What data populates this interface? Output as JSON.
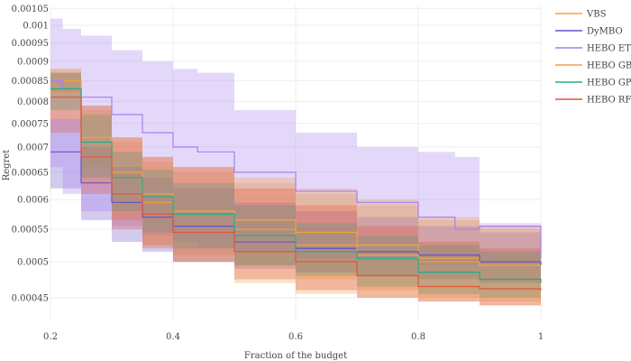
{
  "chart_data": {
    "type": "line",
    "xlabel": "Fraction of the budget",
    "ylabel": "Regret",
    "xlim": [
      0.2,
      1.0
    ],
    "ylim": [
      0.00042,
      0.00106
    ],
    "y_scale": "log",
    "grid": true,
    "legend_position": "right",
    "x_ticks": [
      {
        "value": 0.2,
        "label": "0.2"
      },
      {
        "value": 0.4,
        "label": "0.4"
      },
      {
        "value": 0.6,
        "label": "0.6"
      },
      {
        "value": 0.8,
        "label": "0.8"
      },
      {
        "value": 1.0,
        "label": "1"
      }
    ],
    "y_ticks": [
      {
        "value": 0.00045,
        "label": "0.00045"
      },
      {
        "value": 0.0005,
        "label": "0.0005"
      },
      {
        "value": 0.00055,
        "label": "0.00055"
      },
      {
        "value": 0.0006,
        "label": "0.0006"
      },
      {
        "value": 0.00065,
        "label": "0.00065"
      },
      {
        "value": 0.0007,
        "label": "0.0007"
      },
      {
        "value": 0.00075,
        "label": "0.00075"
      },
      {
        "value": 0.0008,
        "label": "0.0008"
      },
      {
        "value": 0.00085,
        "label": "0.00085"
      },
      {
        "value": 0.0009,
        "label": "0.0009"
      },
      {
        "value": 0.00095,
        "label": "0.00095"
      },
      {
        "value": 0.001,
        "label": "0.001"
      },
      {
        "value": 0.00105,
        "label": "0.00105"
      }
    ],
    "series": [
      {
        "name": "VBS",
        "color": "#f2a340",
        "x": [
          0.2,
          0.25,
          0.3,
          0.35,
          0.4,
          0.5,
          0.6,
          0.7,
          0.8,
          0.9,
          1.0
        ],
        "mean": [
          0.00085,
          0.00072,
          0.00064,
          0.000595,
          0.00058,
          0.000565,
          0.000545,
          0.000525,
          0.000505,
          0.000495,
          0.000495
        ],
        "lower": [
          0.00082,
          0.00066,
          0.000565,
          0.000525,
          0.00051,
          0.000495,
          0.000475,
          0.00046,
          0.00045,
          0.000445,
          0.000445
        ],
        "upper": [
          0.00088,
          0.00079,
          0.00071,
          0.00067,
          0.00065,
          0.00063,
          0.00061,
          0.00059,
          0.000565,
          0.00055,
          0.00055
        ]
      },
      {
        "name": "DyMBO",
        "color": "#6a52c8",
        "x": [
          0.2,
          0.25,
          0.3,
          0.35,
          0.4,
          0.5,
          0.6,
          0.7,
          0.8,
          0.9,
          1.0
        ],
        "mean": [
          0.00069,
          0.00063,
          0.000595,
          0.00057,
          0.000555,
          0.00053,
          0.00052,
          0.000515,
          0.00051,
          0.0005,
          0.000495
        ],
        "lower": [
          0.00062,
          0.000565,
          0.00053,
          0.000515,
          0.0005,
          0.00049,
          0.000485,
          0.00048,
          0.000475,
          0.00047,
          0.000465
        ],
        "upper": [
          0.00076,
          0.0007,
          0.00066,
          0.00064,
          0.00062,
          0.000595,
          0.00058,
          0.00057,
          0.000555,
          0.000545,
          0.00053
        ]
      },
      {
        "name": "HEBO ET",
        "color": "#a77ef0",
        "x": [
          0.2,
          0.22,
          0.25,
          0.3,
          0.35,
          0.4,
          0.44,
          0.5,
          0.6,
          0.7,
          0.8,
          0.86,
          0.9,
          1.0
        ],
        "mean": [
          0.00085,
          0.00083,
          0.00081,
          0.00077,
          0.00073,
          0.0007,
          0.00069,
          0.00065,
          0.000615,
          0.000595,
          0.00057,
          0.00055,
          0.000555,
          0.000505
        ],
        "lower": [
          0.00066,
          0.00061,
          0.00058,
          0.000555,
          0.00054,
          0.00053,
          0.00052,
          0.000515,
          0.000505,
          0.0005,
          0.000495,
          0.000495,
          0.000495,
          0.000495
        ],
        "upper": [
          0.00102,
          0.00099,
          0.00097,
          0.00093,
          0.0009,
          0.00088,
          0.00087,
          0.00078,
          0.00073,
          0.0007,
          0.00069,
          0.00068,
          0.00056,
          0.00053
        ]
      },
      {
        "name": "HEBO GB",
        "color": "#f0a045",
        "x": [
          0.2,
          0.25,
          0.3,
          0.35,
          0.4,
          0.5,
          0.6,
          0.7,
          0.8,
          0.9,
          1.0
        ],
        "mean": [
          0.00082,
          0.00071,
          0.00065,
          0.00061,
          0.00058,
          0.00055,
          0.000525,
          0.00051,
          0.0005,
          0.000495,
          0.000495
        ],
        "lower": [
          0.00076,
          0.00063,
          0.000565,
          0.000525,
          0.0005,
          0.00047,
          0.000455,
          0.00045,
          0.000445,
          0.00044,
          0.000435
        ],
        "upper": [
          0.00088,
          0.00078,
          0.00072,
          0.00068,
          0.00066,
          0.00064,
          0.00062,
          0.0006,
          0.00057,
          0.000555,
          0.000545
        ]
      },
      {
        "name": "HEBO GP",
        "color": "#1fae8c",
        "x": [
          0.2,
          0.25,
          0.3,
          0.35,
          0.4,
          0.5,
          0.6,
          0.7,
          0.8,
          0.9,
          1.0
        ],
        "mean": [
          0.00083,
          0.00071,
          0.00064,
          0.000605,
          0.000575,
          0.00054,
          0.000515,
          0.000505,
          0.000485,
          0.000475,
          0.00047
        ],
        "lower": [
          0.00078,
          0.00064,
          0.00058,
          0.000545,
          0.00052,
          0.000495,
          0.00048,
          0.000465,
          0.000455,
          0.00045,
          0.000445
        ],
        "upper": [
          0.00087,
          0.00077,
          0.00069,
          0.000655,
          0.00063,
          0.00059,
          0.00056,
          0.00054,
          0.000525,
          0.000515,
          0.000505
        ]
      },
      {
        "name": "HEBO RF",
        "color": "#e0553e",
        "x": [
          0.2,
          0.25,
          0.3,
          0.35,
          0.4,
          0.5,
          0.6,
          0.7,
          0.8,
          0.9,
          1.0
        ],
        "mean": [
          0.00081,
          0.00068,
          0.00061,
          0.000575,
          0.000545,
          0.000515,
          0.0005,
          0.00048,
          0.000465,
          0.000462,
          0.00046
        ],
        "lower": [
          0.00073,
          0.00061,
          0.00055,
          0.00052,
          0.0005,
          0.000475,
          0.00046,
          0.00045,
          0.000445,
          0.00044,
          0.00044
        ],
        "upper": [
          0.00087,
          0.00079,
          0.00072,
          0.00068,
          0.00066,
          0.00062,
          0.00059,
          0.000555,
          0.00053,
          0.00052,
          0.000515
        ]
      }
    ]
  }
}
